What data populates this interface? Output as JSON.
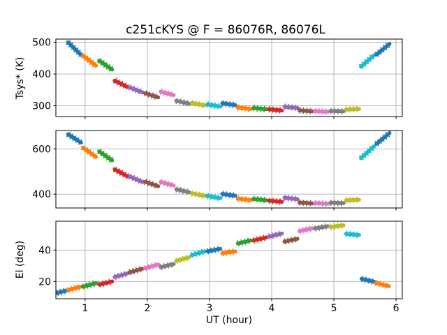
{
  "figure": {
    "title": "c251cKYS @ F = 86076R, 86076L",
    "background": "#ffffff",
    "grid_color": "#b0b0b0",
    "frame_color": "#000000"
  },
  "chart_data": {
    "type": "line",
    "title": "c251cKYS @ F = 86076R, 86076L",
    "xlabel": "UT (hour)",
    "x_ticks": [
      1,
      2,
      3,
      4,
      5,
      6
    ],
    "xlim": [
      0.53,
      6.1
    ],
    "grid": true,
    "legend": false,
    "seg_halfwidth_x": 0.105,
    "color_cycle": [
      "#1f77b4",
      "#ff7f0e",
      "#2ca02c",
      "#d62728",
      "#9467bd",
      "#8c564b",
      "#e377c2",
      "#7f7f7f",
      "#bcbd22",
      "#17becf"
    ],
    "panels": [
      {
        "name": "tsys",
        "ylabel": "Tsys* (K)",
        "yticks": [
          300,
          400,
          500
        ],
        "ylim": [
          266,
          510
        ],
        "segments": {
          "x": [
            0.83,
            1.07,
            1.33,
            1.58,
            1.82,
            2.07,
            2.32,
            2.57,
            2.82,
            3.07,
            3.31,
            3.56,
            3.81,
            4.06,
            4.31,
            4.55,
            4.8,
            5.05,
            5.3,
            5.54,
            5.79
          ],
          "y": [
            480,
            442,
            428,
            369,
            350,
            333,
            339,
            311,
            305,
            301,
            305,
            292,
            291,
            287,
            295,
            284,
            282,
            283,
            289,
            441,
            478
          ],
          "dy": [
            -40,
            -32,
            -28,
            -20,
            -16,
            -13,
            -11,
            -9,
            -8,
            -7,
            -6,
            -5,
            -4,
            -4,
            -4,
            -3,
            -2,
            -1,
            2,
            36,
            34
          ]
        }
      },
      {
        "name": "tsys2",
        "ylabel": "",
        "yticks": [
          400,
          600
        ],
        "ylim": [
          339,
          681
        ],
        "segments": {
          "x": [
            0.83,
            1.07,
            1.33,
            1.58,
            1.82,
            2.07,
            2.32,
            2.57,
            2.82,
            3.07,
            3.31,
            3.56,
            3.81,
            4.06,
            4.31,
            4.55,
            4.8,
            5.05,
            5.3,
            5.54,
            5.79
          ],
          "y": [
            646,
            585,
            569,
            494,
            466,
            445,
            446,
            415,
            398,
            387,
            397,
            377,
            376,
            369,
            381,
            361,
            359,
            361,
            374,
            585,
            646
          ],
          "dy": [
            -37,
            -41,
            -40,
            -31,
            -25,
            -20,
            -16,
            -13,
            -11,
            -10,
            -8,
            -7,
            -6,
            -5,
            -6,
            -4,
            -3,
            -2,
            3,
            52,
            48
          ]
        }
      },
      {
        "name": "el",
        "ylabel": "El (deg)",
        "yticks": [
          20,
          40
        ],
        "ylim": [
          9,
          58.4
        ],
        "segments": {
          "x": [
            0.6,
            0.83,
            1.07,
            1.33,
            1.58,
            1.82,
            2.07,
            2.32,
            2.57,
            2.82,
            3.07,
            3.31,
            3.56,
            3.81,
            4.06,
            4.31,
            4.55,
            4.8,
            5.05,
            5.3,
            5.55,
            5.78
          ],
          "y": [
            13.2,
            15.6,
            17.8,
            19.0,
            24.0,
            27.0,
            29.6,
            30.1,
            34.3,
            38.0,
            40.0,
            38.6,
            45.2,
            47.1,
            49.6,
            46.3,
            53.0,
            54.5,
            55.3,
            50.0,
            20.7,
            18.0
          ],
          "dy": [
            2.2,
            2.2,
            2.2,
            2.0,
            2.4,
            2.4,
            2.4,
            2.0,
            2.4,
            2.4,
            1.6,
            1.2,
            2.0,
            2.0,
            2.0,
            1.8,
            1.8,
            1.5,
            1.0,
            -0.8,
            -2.0,
            -2.0
          ]
        }
      }
    ]
  }
}
